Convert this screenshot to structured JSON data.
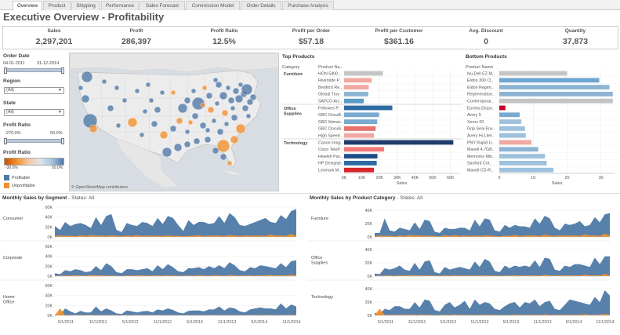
{
  "tabs": [
    {
      "label": "Overview",
      "active": true
    },
    {
      "label": "Product"
    },
    {
      "label": "Shipping"
    },
    {
      "label": "Performance"
    },
    {
      "label": "Sales Forecast"
    },
    {
      "label": "Commission Model"
    },
    {
      "label": "Order Details"
    },
    {
      "label": "Purchase Analysis"
    }
  ],
  "title": "Executive Overview - Profitability",
  "kpis": [
    {
      "label": "Sales",
      "value": "2,297,201"
    },
    {
      "label": "Profit",
      "value": "286,397"
    },
    {
      "label": "Profit Ratio",
      "value": "12.5%"
    },
    {
      "label": "Profit per Order",
      "value": "$57.18"
    },
    {
      "label": "Profit per Customer",
      "value": "$361.16"
    },
    {
      "label": "Avg. Discount",
      "value": "0"
    },
    {
      "label": "Quantity",
      "value": "37,873"
    }
  ],
  "filters": {
    "order_date": {
      "label": "Order Date",
      "start": "04-01-2011",
      "end": "31-12-2014"
    },
    "region": {
      "label": "Region",
      "value": "(All)"
    },
    "state": {
      "label": "State",
      "value": "(All)"
    },
    "profit_ratio_filter": {
      "label": "Profit Ratio",
      "min": "-270.0%",
      "max": "50.0%"
    },
    "profit_ratio_legend": {
      "label": "Profit Ratio",
      "min": "-30.0%",
      "max": "50.0%"
    },
    "legend": [
      {
        "label": "Profitable",
        "color": "#4e79a7"
      },
      {
        "label": "Unprofitable",
        "color": "#f28e2b"
      }
    ]
  },
  "map": {
    "attribution": "© OpenStreetMap contributors"
  },
  "colors": {
    "blue": "#4e79a7",
    "orange": "#f28e2b",
    "ocean": "#d7dde2",
    "land": "#ececec"
  },
  "chart_data": [
    {
      "type": "bar",
      "title": "Top Products",
      "category_header": "Category",
      "product_header": "Product Na..",
      "xlabel": "Sales",
      "xlim": [
        0,
        65000
      ],
      "ticks": [
        "0K",
        "10K",
        "20K",
        "30K",
        "40K",
        "50K",
        "60K"
      ],
      "groups": [
        {
          "name": "Furniture",
          "items": [
            {
              "product": "HON 5400 ..",
              "value": 21900,
              "color": "#c4c4c4"
            },
            {
              "product": "Riverside P..",
              "value": 15600,
              "color": "#f1a8a2"
            },
            {
              "product": "Bretford Re..",
              "value": 13900,
              "color": "#f1a8a2"
            },
            {
              "product": "Global Troy",
              "value": 13700,
              "color": "#8db4d4"
            },
            {
              "product": "SAFCO Arc..",
              "value": 11100,
              "color": "#5b9bc7"
            }
          ]
        },
        {
          "name": "Office Supplies",
          "items": [
            {
              "product": "Fellowes P..",
              "value": 27200,
              "color": "#2d6aa3"
            },
            {
              "product": "GBC DocuB..",
              "value": 19700,
              "color": "#7aa9d0"
            },
            {
              "product": "GBC Ibimas..",
              "value": 18700,
              "color": "#7aa9d0"
            },
            {
              "product": "GBC DocuB..",
              "value": 17800,
              "color": "#e8706d"
            },
            {
              "product": "High Speed ..",
              "value": 16900,
              "color": "#f1a8a2"
            }
          ]
        },
        {
          "name": "Technology",
          "items": [
            {
              "product": "Canon imag..",
              "value": 61600,
              "color": "#203c6b"
            },
            {
              "product": "Cisco TeleP..",
              "value": 22600,
              "color": "#f07a78"
            },
            {
              "product": "Hewlett Pac..",
              "value": 18800,
              "color": "#1f4f8a"
            },
            {
              "product": "HP Designje..",
              "value": 18400,
              "color": "#2d6aa3"
            },
            {
              "product": "Lexmark M..",
              "value": 16800,
              "color": "#d62728"
            }
          ]
        }
      ]
    },
    {
      "type": "bar",
      "title": "Bottom Products",
      "product_header": "Product Name",
      "xlabel": "Sales",
      "xlim": [
        0,
        34
      ],
      "ticks": [
        "0",
        "10",
        "20",
        "30"
      ],
      "items": [
        {
          "product": "Nu-Dell EZ-M..",
          "value": 20,
          "color": "#c4c4c4"
        },
        {
          "product": "Eldon 300 Cl..",
          "value": 29.5,
          "color": "#6ea6d2"
        },
        {
          "product": "Eldon Regen..",
          "value": 32.5,
          "color": "#8db4d4"
        },
        {
          "product": "Regeneration..",
          "value": 33.5,
          "color": "#8db4d4"
        },
        {
          "product": "Contemporar..",
          "value": 33.5,
          "color": "#c4c4c4"
        },
        {
          "product": "Eureka Dispo..",
          "value": 1.8,
          "color": "#c00026"
        },
        {
          "product": "Avery 5",
          "value": 6.0,
          "color": "#7aa9d0"
        },
        {
          "product": "Xerox 20",
          "value": 6.5,
          "color": "#9ec1dd"
        },
        {
          "product": "Grip Seal Env..",
          "value": 7.6,
          "color": "#9ec1dd"
        },
        {
          "product": "Avery Hi-Liter..",
          "value": 7.8,
          "color": "#9ec1dd"
        },
        {
          "product": "PNY Rapid U..",
          "value": 9.5,
          "color": "#f1a8a2"
        },
        {
          "product": "Maxell 4.7GB..",
          "value": 11.5,
          "color": "#8db4d4"
        },
        {
          "product": "Memorex Min..",
          "value": 13.5,
          "color": "#9ec1dd"
        },
        {
          "product": "Sanford Col..",
          "value": 14.0,
          "color": "#9ec1dd"
        },
        {
          "product": "Maxell CD-R..",
          "value": 16.0,
          "color": "#9ec1dd"
        }
      ]
    },
    {
      "type": "area",
      "title": "Monthly Sales by Segment",
      "title_suffix": "- States: All",
      "x_ticks": [
        "5/1/2011",
        "11/1/2011",
        "5/1/2012",
        "11/1/2012",
        "5/1/2013",
        "11/1/2013",
        "5/1/2014",
        "11/1/2014"
      ],
      "panels": [
        {
          "name": "Consumer",
          "yticks": [
            "60K",
            "40K",
            "20K",
            "0K"
          ],
          "ymax": 60000,
          "profitable": [
            22000,
            14000,
            30000,
            22000,
            26000,
            28000,
            24000,
            18000,
            40000,
            24000,
            42000,
            46000,
            14000,
            10000,
            28000,
            24000,
            22000,
            30000,
            28000,
            22000,
            38000,
            26000,
            42000,
            38000,
            24000,
            12000,
            34000,
            24000,
            30000,
            30000,
            26000,
            28000,
            42000,
            28000,
            48000,
            40000,
            24000,
            22000,
            26000,
            30000,
            34000,
            38000,
            30000,
            28000,
            44000,
            36000,
            52000,
            56000
          ],
          "unprofitable": [
            1500,
            3000,
            2000,
            2500,
            1500,
            3500,
            2000,
            4000,
            2500,
            3000,
            2000,
            3000,
            2500,
            1500,
            3000,
            2000,
            4000,
            2000,
            3000,
            2000,
            2500,
            2000,
            3000,
            2000,
            2500,
            1500,
            2000,
            2500,
            3500,
            2000,
            2500,
            3000,
            2500,
            2000,
            4000,
            2500,
            2000,
            3000,
            2500,
            2500,
            3000,
            2000,
            5000,
            2500,
            3000,
            2000,
            6000,
            2500
          ]
        },
        {
          "name": "Corporate",
          "yticks": [
            "60K",
            "40K",
            "20K",
            "0K"
          ],
          "ymax": 60000,
          "profitable": [
            6000,
            4000,
            12000,
            10000,
            14000,
            12000,
            8000,
            10000,
            20000,
            12000,
            26000,
            20000,
            8000,
            6000,
            14000,
            14000,
            12000,
            14000,
            16000,
            10000,
            22000,
            14000,
            24000,
            18000,
            10000,
            8000,
            16000,
            16000,
            18000,
            14000,
            20000,
            16000,
            22000,
            16000,
            28000,
            22000,
            12000,
            10000,
            18000,
            16000,
            22000,
            20000,
            18000,
            16000,
            26000,
            18000,
            30000,
            32000
          ],
          "unprofitable": [
            500,
            1000,
            1500,
            1000,
            2000,
            1500,
            1000,
            2500,
            1500,
            2000,
            1000,
            1500,
            1000,
            500,
            1500,
            1000,
            2000,
            1500,
            1000,
            1500,
            1500,
            1000,
            2000,
            1500,
            1000,
            1000,
            1500,
            1000,
            2000,
            1500,
            1000,
            2000,
            1500,
            1000,
            2500,
            1500,
            1000,
            1500,
            1500,
            1000,
            2000,
            1500,
            2500,
            1500,
            2000,
            1500,
            3000,
            2000
          ]
        },
        {
          "name": "Home\nOffice",
          "yticks": [
            "60K",
            "40K",
            "20K",
            "0K"
          ],
          "ymax": 60000,
          "profitable": [
            2000,
            1000,
            14000,
            8000,
            4000,
            9000,
            6000,
            6000,
            18000,
            8000,
            14000,
            10000,
            4000,
            3000,
            10000,
            8000,
            6000,
            8000,
            9000,
            6000,
            12000,
            10000,
            14000,
            11000,
            6000,
            4000,
            9000,
            10000,
            10000,
            8000,
            12000,
            12000,
            18000,
            10000,
            16000,
            14000,
            8000,
            6000,
            12000,
            14000,
            16000,
            14000,
            14000,
            12000,
            24000,
            14000,
            22000,
            18000
          ],
          "unprofitable": [
            500,
            14000,
            800,
            600,
            1000,
            800,
            600,
            1200,
            700,
            900,
            600,
            800,
            500,
            400,
            900,
            600,
            1000,
            700,
            800,
            600,
            900,
            700,
            1000,
            800,
            600,
            500,
            800,
            700,
            900,
            700,
            800,
            1000,
            800,
            700,
            1200,
            800,
            600,
            700,
            800,
            900,
            1000,
            800,
            1200,
            700,
            1000,
            800,
            1400,
            900
          ]
        }
      ]
    },
    {
      "type": "area",
      "title": "Monthly Sales by Product Category",
      "title_suffix": "- States: All",
      "x_ticks": [
        "5/1/2011",
        "11/1/2011",
        "5/1/2012",
        "11/1/2012",
        "5/1/2013",
        "11/1/2013",
        "5/1/2014",
        "11/1/2014"
      ],
      "panels": [
        {
          "name": "Furniture",
          "yticks": [
            "40K",
            "20K",
            "0K"
          ],
          "ymax": 45000,
          "profitable": [
            6000,
            6000,
            28000,
            10000,
            8000,
            14000,
            12000,
            10000,
            22000,
            12000,
            26000,
            24000,
            8000,
            6000,
            14000,
            12000,
            12000,
            14000,
            14000,
            10000,
            26000,
            16000,
            28000,
            26000,
            10000,
            8000,
            18000,
            14000,
            18000,
            16000,
            16000,
            14000,
            28000,
            20000,
            32000,
            28000,
            14000,
            10000,
            20000,
            18000,
            20000,
            24000,
            16000,
            18000,
            30000,
            22000,
            34000,
            36000
          ],
          "unprofitable": [
            1000,
            2000,
            1500,
            2000,
            1000,
            2500,
            1500,
            3000,
            2000,
            2500,
            1500,
            2000,
            1500,
            1000,
            2500,
            1500,
            3000,
            1500,
            2000,
            1500,
            2000,
            1500,
            2500,
            2000,
            1500,
            1000,
            2000,
            1500,
            3000,
            1500,
            2000,
            2500,
            2000,
            1500,
            3500,
            2000,
            1500,
            2500,
            2000,
            2000,
            2500,
            1500,
            4000,
            2000,
            2500,
            1500,
            5000,
            2000
          ]
        },
        {
          "name": "Office\nSupplies",
          "yticks": [
            "40K",
            "20K",
            "0K"
          ],
          "ymax": 45000,
          "profitable": [
            4000,
            3000,
            12000,
            10000,
            12000,
            16000,
            10000,
            8000,
            20000,
            10000,
            22000,
            24000,
            6000,
            4000,
            14000,
            10000,
            12000,
            14000,
            12000,
            10000,
            22000,
            14000,
            26000,
            22000,
            8000,
            6000,
            16000,
            12000,
            16000,
            14000,
            16000,
            14000,
            24000,
            14000,
            28000,
            26000,
            10000,
            8000,
            16000,
            14000,
            18000,
            18000,
            16000,
            14000,
            28000,
            18000,
            30000,
            30000
          ],
          "unprofitable": [
            500,
            1000,
            800,
            1200,
            600,
            1500,
            1000,
            1800,
            1200,
            1500,
            900,
            1200,
            800,
            600,
            1400,
            900,
            1700,
            1000,
            1200,
            900,
            1200,
            900,
            1500,
            1100,
            800,
            700,
            1200,
            900,
            1800,
            1000,
            1200,
            1500,
            1200,
            900,
            2200,
            1200,
            900,
            1500,
            1200,
            1200,
            1500,
            1000,
            2500,
            1200,
            1500,
            1000,
            3500,
            1200
          ]
        },
        {
          "name": "Technology",
          "yticks": [
            "40K",
            "20K",
            "0K"
          ],
          "ymax": 45000,
          "profitable": [
            4000,
            2000,
            10000,
            8000,
            14000,
            14000,
            10000,
            10000,
            20000,
            12000,
            24000,
            22000,
            8000,
            6000,
            16000,
            20000,
            12000,
            16000,
            22000,
            10000,
            24000,
            16000,
            20000,
            18000,
            10000,
            8000,
            14000,
            18000,
            20000,
            12000,
            20000,
            18000,
            24000,
            14000,
            20000,
            22000,
            10000,
            8000,
            16000,
            24000,
            22000,
            20000,
            18000,
            16000,
            28000,
            20000,
            38000,
            30000
          ],
          "unprofitable": [
            500,
            10000,
            800,
            1000,
            700,
            1200,
            800,
            1500,
            1000,
            1200,
            800,
            1000,
            600,
            500,
            1200,
            800,
            1500,
            900,
            1000,
            800,
            1000,
            800,
            1200,
            900,
            700,
            600,
            1000,
            800,
            1500,
            900,
            1000,
            1200,
            1000,
            800,
            1800,
            1000,
            800,
            1200,
            1000,
            1000,
            1200,
            900,
            2000,
            1000,
            1200,
            900,
            2500,
            1000
          ]
        }
      ]
    }
  ]
}
